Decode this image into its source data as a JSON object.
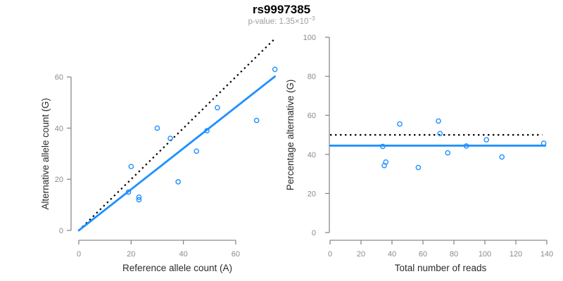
{
  "header": {
    "title": "rs9997385",
    "p_value": "p-value: 1.35×10",
    "p_value_exponent": "−3"
  },
  "colors": {
    "accent_blue": "#1E90FF",
    "dotted_line": "#000000",
    "axis_gray": "#8a8a8a",
    "tick_label_gray": "#8a8a8a",
    "axis_label_dark": "#2b2b2b",
    "subtitle_gray": "#9e9e9e"
  },
  "chart_data": [
    {
      "type": "scatter",
      "title": "",
      "xlabel": "Reference allele count (A)",
      "ylabel": "Alternative allele count (G)",
      "xticks": [
        0,
        20,
        40,
        60
      ],
      "yticks": [
        0,
        20,
        40,
        60
      ],
      "xlim": [
        0,
        75
      ],
      "ylim": [
        0,
        75
      ],
      "grid": false,
      "marker": "open-circle",
      "points": [
        [
          20,
          25
        ],
        [
          30,
          40
        ],
        [
          35,
          36
        ],
        [
          19,
          15
        ],
        [
          49,
          39
        ],
        [
          53,
          48
        ],
        [
          75,
          63
        ],
        [
          45,
          31
        ],
        [
          68,
          43
        ],
        [
          23,
          13
        ],
        [
          23,
          12
        ],
        [
          38,
          19
        ]
      ],
      "lines": [
        {
          "name": "identity-line",
          "style": "dotted",
          "color": "#000000",
          "x1": 0,
          "y1": 0,
          "x2": 74.6,
          "y2": 74.6
        },
        {
          "name": "regression-line",
          "style": "solid",
          "color": "#1E90FF",
          "x1": 0,
          "y1": 0,
          "x2": 75,
          "y2": 60.2
        }
      ]
    },
    {
      "type": "scatter",
      "title": "",
      "xlabel": "Total number of reads",
      "ylabel": "Percentage alternative (G)",
      "xticks": [
        0,
        20,
        40,
        60,
        80,
        100,
        120,
        140
      ],
      "yticks": [
        0,
        20,
        40,
        60,
        80,
        100
      ],
      "xlim": [
        0,
        140
      ],
      "ylim": [
        0,
        100
      ],
      "grid": false,
      "marker": "open-circle",
      "points": [
        [
          45,
          55.6
        ],
        [
          70,
          57.1
        ],
        [
          71,
          50.7
        ],
        [
          34,
          44.1
        ],
        [
          88,
          44.3
        ],
        [
          101,
          47.5
        ],
        [
          138,
          45.7
        ],
        [
          76,
          40.8
        ],
        [
          111,
          38.7
        ],
        [
          36,
          36.1
        ],
        [
          35,
          34.3
        ],
        [
          57,
          33.3
        ]
      ],
      "lines": [
        {
          "name": "expected-50pct-line",
          "style": "dotted",
          "color": "#000000",
          "x1": 0,
          "y1": 50,
          "x2": 137,
          "y2": 50
        },
        {
          "name": "mean-percentage-line",
          "style": "solid",
          "color": "#1E90FF",
          "x1": 0,
          "y1": 44.5,
          "x2": 139,
          "y2": 44.5
        }
      ]
    }
  ]
}
